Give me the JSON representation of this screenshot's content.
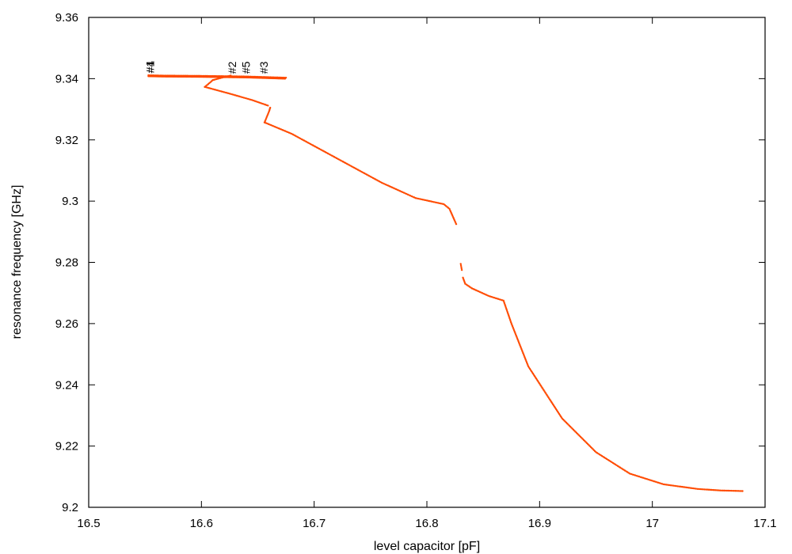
{
  "chart_data": {
    "type": "scatter",
    "title": "",
    "xlabel": "level capacitor [pF]",
    "ylabel": "resonance frequency [GHz]",
    "xlim": [
      16.5,
      17.1
    ],
    "ylim": [
      9.2,
      9.36
    ],
    "xticks": [
      "16.5",
      "16.6",
      "16.7",
      "16.8",
      "16.9",
      "17",
      "17.1"
    ],
    "yticks": [
      "9.2",
      "9.22",
      "9.24",
      "9.26",
      "9.28",
      "9.3",
      "9.32",
      "9.34",
      "9.36"
    ],
    "grid": false,
    "legend": "none",
    "marker_color": "#ff4a00",
    "segments": [
      {
        "x": [
          16.553,
          16.565,
          16.6,
          16.64,
          16.675
        ],
        "y": [
          9.3411,
          9.341,
          9.3409,
          9.3407,
          9.3403
        ]
      },
      {
        "x": [
          16.61,
          16.618,
          16.626
        ],
        "y": [
          9.3395,
          9.3403,
          9.341
        ]
      },
      {
        "x": [
          16.603,
          16.606,
          16.61
        ],
        "y": [
          9.3373,
          9.3382,
          9.3395
        ]
      },
      {
        "x": [
          16.603,
          16.625,
          16.645,
          16.659
        ],
        "y": [
          9.3373,
          9.3351,
          9.333,
          9.3312
        ]
      },
      {
        "x": [
          16.656,
          16.658,
          16.66,
          16.661
        ],
        "y": [
          9.3257,
          9.3275,
          9.3293,
          9.3305
        ]
      },
      {
        "x": [
          16.656,
          16.68,
          16.72,
          16.76,
          16.79,
          16.815,
          16.82,
          16.823,
          16.826
        ],
        "y": [
          9.3257,
          9.322,
          9.314,
          9.306,
          9.301,
          9.299,
          9.2975,
          9.295,
          9.2925
        ]
      },
      {
        "x": [
          16.83,
          16.831
        ],
        "y": [
          9.2795,
          9.2775
        ]
      },
      {
        "x": [
          16.832,
          16.834,
          16.84,
          16.855,
          16.868,
          16.875,
          16.89,
          16.92,
          16.95,
          16.98,
          17.01,
          17.04,
          17.06,
          17.08
        ],
        "y": [
          9.275,
          9.273,
          9.2715,
          9.269,
          9.2675,
          9.26,
          9.246,
          9.229,
          9.218,
          9.211,
          9.2075,
          9.206,
          9.2055,
          9.2053
        ]
      }
    ],
    "annotations": [
      {
        "text": "#4",
        "x": 16.555,
        "y": 9.3418
      },
      {
        "text": "#1",
        "x": 16.555,
        "y": 9.3418
      },
      {
        "text": "#2",
        "x": 16.628,
        "y": 9.3416
      },
      {
        "text": "#5",
        "x": 16.64,
        "y": 9.3416
      },
      {
        "text": "#3",
        "x": 16.656,
        "y": 9.3416
      }
    ]
  }
}
